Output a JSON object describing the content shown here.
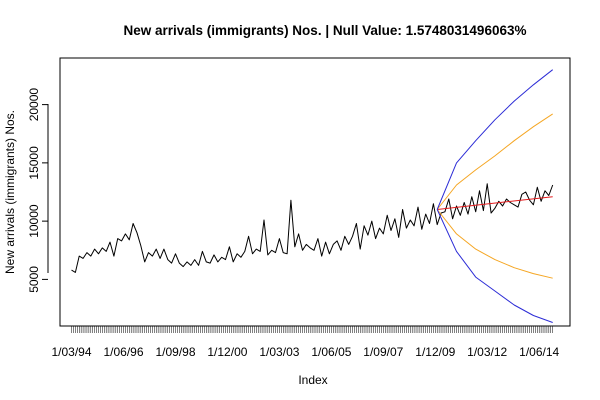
{
  "chart_data": {
    "type": "line",
    "title": "New arrivals (immigrants) Nos. | Null Value: 1.5748031496063%",
    "xlabel": "Index",
    "ylabel": "New arrivals (immigrants) Nos.",
    "x_tick_labels": [
      "1/03/94",
      "1/06/96",
      "1/09/98",
      "1/12/00",
      "1/03/03",
      "1/06/05",
      "1/09/07",
      "1/12/09",
      "1/03/12",
      "1/06/14"
    ],
    "x_tick_positions": [
      0,
      27,
      54,
      81,
      108,
      135,
      162,
      189,
      216,
      243
    ],
    "y_ticks": [
      5000,
      10000,
      15000,
      20000
    ],
    "xlim": [
      -6,
      259
    ],
    "ylim": [
      1000,
      24000
    ],
    "grid": false,
    "legend": "none",
    "series": [
      {
        "key": "observed",
        "color": "#000000",
        "x": [
          0,
          2,
          4,
          6,
          8,
          10,
          12,
          14,
          16,
          18,
          20,
          22,
          24,
          26,
          28,
          30,
          32,
          34,
          36,
          38,
          40,
          42,
          44,
          46,
          48,
          50,
          52,
          54,
          56,
          58,
          60,
          62,
          64,
          66,
          68,
          70,
          72,
          74,
          76,
          78,
          80,
          82,
          84,
          86,
          88,
          90,
          92,
          94,
          96,
          98,
          100,
          102,
          104,
          106,
          108,
          110,
          112,
          114,
          116,
          118,
          120,
          122,
          124,
          126,
          128,
          130,
          132,
          134,
          136,
          138,
          140,
          142,
          144,
          146,
          148,
          150,
          152,
          154,
          156,
          158,
          160,
          162,
          164,
          166,
          168,
          170,
          172,
          174,
          176,
          178,
          180,
          182,
          184,
          186,
          188,
          190,
          192,
          194,
          196,
          198,
          200,
          202,
          204,
          206,
          208,
          210,
          212,
          214,
          216,
          218,
          220,
          222,
          224,
          226,
          228,
          230,
          232,
          234,
          236,
          238,
          240,
          242,
          244,
          246,
          248,
          250
        ],
        "y": [
          5800,
          5600,
          7000,
          6800,
          7300,
          7000,
          7600,
          7200,
          7700,
          7400,
          8200,
          7000,
          8500,
          8300,
          8900,
          8400,
          9800,
          9000,
          7900,
          6500,
          7300,
          7000,
          7600,
          6800,
          7600,
          6700,
          6400,
          7200,
          6400,
          6100,
          6500,
          6200,
          6700,
          6200,
          7400,
          6500,
          6400,
          7100,
          6500,
          6900,
          6700,
          7800,
          6500,
          7200,
          6900,
          7400,
          8700,
          7200,
          7600,
          7400,
          10100,
          7100,
          7500,
          7300,
          8500,
          7300,
          7200,
          11800,
          7800,
          8900,
          7500,
          8000,
          7700,
          7500,
          8500,
          7000,
          8200,
          7200,
          8000,
          8300,
          7500,
          8700,
          8000,
          8700,
          9800,
          7600,
          9600,
          8800,
          10000,
          8500,
          9400,
          8900,
          10500,
          9200,
          10200,
          8600,
          11000,
          9400,
          10100,
          9600,
          11200,
          9300,
          10600,
          9800,
          11500,
          9700,
          10700,
          10800,
          11900,
          10200,
          11300,
          10500,
          11600,
          10600,
          12100,
          10800,
          12600,
          10900,
          13200,
          10700,
          11100,
          11700,
          11300,
          11900,
          11600,
          11400,
          11200,
          12300,
          12500,
          11800,
          11400,
          12900,
          11700,
          12600,
          12200,
          13100
        ]
      },
      {
        "key": "forecast",
        "color": "#e31a1c",
        "x": [
          190,
          250
        ],
        "y": [
          11000,
          12100
        ]
      },
      {
        "key": "upper-80",
        "color": "#f5a623",
        "x": [
          190,
          200,
          210,
          220,
          230,
          240,
          250
        ],
        "y": [
          11000,
          13100,
          14400,
          15600,
          16900,
          18100,
          19200
        ]
      },
      {
        "key": "lower-80",
        "color": "#f5a623",
        "x": [
          190,
          200,
          210,
          220,
          230,
          240,
          250
        ],
        "y": [
          11000,
          8900,
          7600,
          6700,
          6000,
          5500,
          5100
        ]
      },
      {
        "key": "upper-95",
        "color": "#2c2cd6",
        "x": [
          190,
          200,
          210,
          220,
          230,
          240,
          250
        ],
        "y": [
          11000,
          15000,
          16900,
          18700,
          20300,
          21700,
          23000
        ]
      },
      {
        "key": "lower-95",
        "color": "#2c2cd6",
        "x": [
          190,
          200,
          210,
          220,
          230,
          240,
          250
        ],
        "y": [
          11000,
          7400,
          5200,
          4000,
          2800,
          1900,
          1300
        ]
      }
    ]
  }
}
